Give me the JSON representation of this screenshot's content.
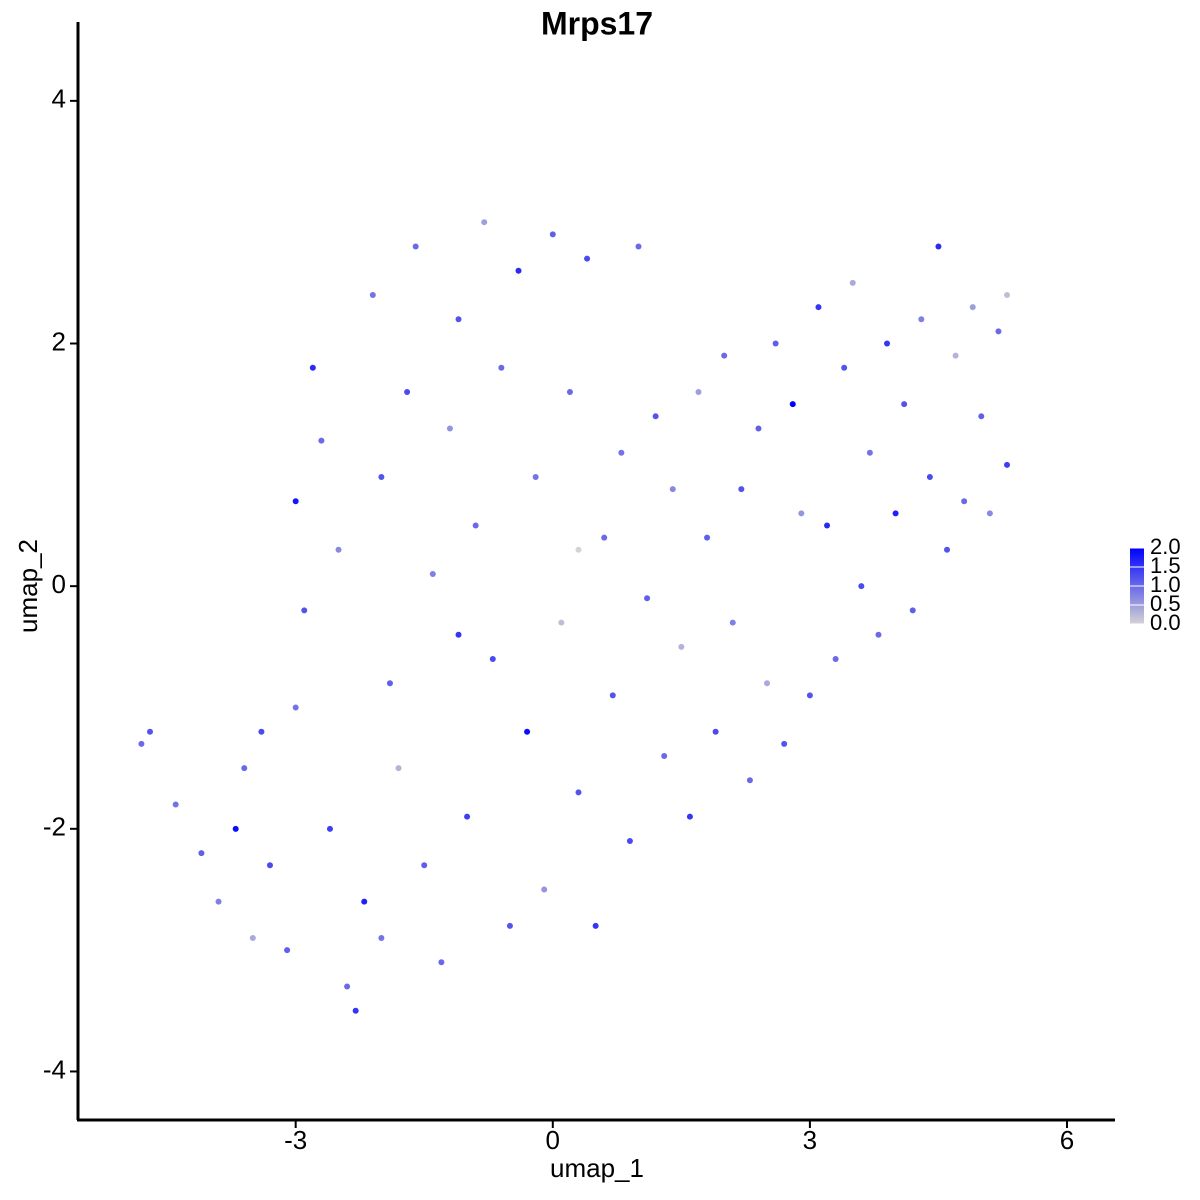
{
  "chart_data": {
    "type": "scatter",
    "title": "Mrps17",
    "x_label": "umap_1",
    "y_label": "umap_2",
    "xlim": [
      -5.54,
      6.56
    ],
    "ylim": [
      -4.4,
      4.65
    ],
    "xticks": [
      -3,
      0,
      3,
      6
    ],
    "yticks": [
      -4,
      -2,
      0,
      2,
      4
    ],
    "color_scale": {
      "colors": [
        "#d3d3d3",
        "#0000ff"
      ],
      "lim": [
        0,
        2
      ],
      "ticks": [
        {
          "value": 0,
          "label": "0.0"
        },
        {
          "value": 0.5,
          "label": "0.5"
        },
        {
          "value": 1,
          "label": "1.0"
        },
        {
          "value": 1.5,
          "label": "1.5"
        },
        {
          "value": 2,
          "label": "2.0"
        }
      ]
    },
    "series": [
      {
        "x": [
          -4.8,
          -4.7,
          -4.4,
          -4.1,
          -3.9,
          -3.7,
          -3.6,
          -3.5,
          -3.3,
          -3.1,
          -3.0,
          -3.0,
          -2.9,
          -2.8,
          -2.7,
          -2.6,
          -2.5,
          -2.4,
          -2.3,
          -2.2,
          -2.1,
          -2.0,
          -1.9,
          -1.8,
          -1.7,
          -1.6,
          -1.5,
          -1.4,
          -1.3,
          -1.2,
          -1.1,
          -1.0,
          -0.9,
          -0.8,
          -0.7,
          -0.6,
          -0.5,
          -0.4,
          -0.3,
          -0.2,
          -0.1,
          0.0,
          0.1,
          0.2,
          0.3,
          0.4,
          0.5,
          0.6,
          0.7,
          0.8,
          0.9,
          1.0,
          1.1,
          1.2,
          1.3,
          1.4,
          1.5,
          1.6,
          1.7,
          1.8,
          1.9,
          2.0,
          2.1,
          2.2,
          2.3,
          2.4,
          2.5,
          2.6,
          2.7,
          2.8,
          2.9,
          3.0,
          3.1,
          3.2,
          3.3,
          3.4,
          3.5,
          3.6,
          3.7,
          3.8,
          3.9,
          4.0,
          4.1,
          4.2,
          4.3,
          4.4,
          4.5,
          4.6,
          4.7,
          4.8,
          4.9,
          5.0,
          5.1,
          5.2,
          5.3,
          5.3,
          -3.4,
          -2.0,
          -1.1,
          0.3
        ],
        "y": [
          -1.3,
          -1.2,
          -1.8,
          -2.2,
          -2.6,
          -2.0,
          -1.5,
          -2.9,
          -2.3,
          -3.0,
          -1.0,
          0.7,
          -0.2,
          1.8,
          1.2,
          -2.0,
          0.3,
          -3.3,
          -3.5,
          -2.6,
          2.4,
          0.9,
          -0.8,
          -1.5,
          1.6,
          2.8,
          -2.3,
          0.1,
          -3.1,
          1.3,
          2.2,
          -1.9,
          0.5,
          3.0,
          -0.6,
          1.8,
          -2.8,
          2.6,
          -1.2,
          0.9,
          -2.5,
          2.9,
          -0.3,
          1.6,
          -1.7,
          2.7,
          -2.8,
          0.4,
          -0.9,
          1.1,
          -2.1,
          2.8,
          -0.1,
          1.4,
          -1.4,
          0.8,
          -0.5,
          -1.9,
          1.6,
          0.4,
          -1.2,
          1.9,
          -0.3,
          0.8,
          -1.6,
          1.3,
          -0.8,
          2.0,
          -1.3,
          1.5,
          0.6,
          -0.9,
          2.3,
          0.5,
          -0.6,
          1.8,
          2.5,
          0.0,
          1.1,
          -0.4,
          2.0,
          0.6,
          1.5,
          -0.2,
          2.2,
          0.9,
          2.8,
          0.3,
          1.9,
          0.7,
          2.3,
          1.4,
          0.6,
          2.1,
          1.0,
          2.4,
          -1.2,
          -2.9,
          -0.4,
          0.3
        ],
        "values": [
          1.0,
          1.2,
          0.9,
          1.1,
          0.8,
          1.9,
          1.0,
          0.4,
          1.3,
          1.1,
          0.9,
          1.8,
          1.2,
          1.6,
          1.0,
          1.4,
          0.7,
          1.0,
          1.5,
          1.7,
          0.9,
          1.2,
          1.1,
          0.3,
          1.3,
          1.0,
          1.1,
          0.8,
          1.0,
          0.6,
          1.2,
          1.4,
          1.0,
          0.5,
          1.3,
          1.0,
          1.2,
          1.6,
          1.9,
          0.9,
          0.6,
          1.1,
          0.2,
          1.0,
          1.2,
          1.3,
          1.5,
          1.0,
          1.2,
          0.9,
          1.3,
          1.0,
          1.1,
          1.2,
          1.0,
          0.7,
          0.3,
          1.5,
          0.5,
          1.1,
          1.3,
          1.0,
          0.8,
          1.2,
          1.0,
          1.1,
          0.4,
          1.1,
          1.2,
          2.0,
          0.6,
          1.2,
          1.5,
          1.6,
          1.0,
          1.2,
          0.4,
          1.3,
          0.9,
          1.0,
          1.5,
          1.7,
          1.2,
          1.1,
          0.8,
          1.3,
          1.6,
          1.2,
          0.3,
          1.0,
          0.5,
          1.1,
          0.7,
          1.0,
          1.4,
          0.2,
          1.3,
          0.9,
          1.5,
          0.0
        ]
      }
    ]
  }
}
